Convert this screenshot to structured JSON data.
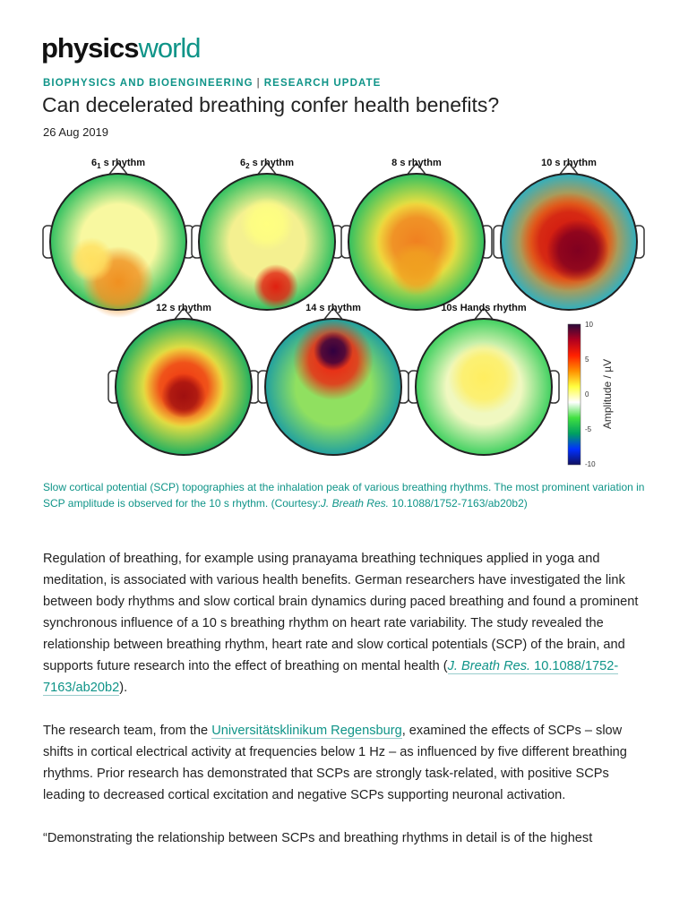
{
  "logo": {
    "part1": "physics",
    "part2": "world"
  },
  "category": {
    "primary": "BIOPHYSICS AND BIOENGINEERING",
    "separator": "|",
    "secondary": "RESEARCH UPDATE"
  },
  "title": "Can decelerated breathing confer health benefits?",
  "date": "26 Aug 2019",
  "figure": {
    "maps": [
      {
        "label": "6",
        "sub": "1",
        "suffix": " s rhythm"
      },
      {
        "label": "6",
        "sub": "2",
        "suffix": " s rhythm"
      },
      {
        "label": "8 s rhythm",
        "sub": "",
        "suffix": ""
      },
      {
        "label": "10 s rhythm",
        "sub": "",
        "suffix": ""
      },
      {
        "label": "12 s rhythm",
        "sub": "",
        "suffix": ""
      },
      {
        "label": "14 s rhythm",
        "sub": "",
        "suffix": ""
      },
      {
        "label": "10s Hands rhythm",
        "sub": "",
        "suffix": ""
      }
    ],
    "colorbar": {
      "label": "Amplitude / µV",
      "ticks": [
        "10",
        "5",
        "0",
        "-5",
        "-10"
      ],
      "colors": [
        "#2a0a3a",
        "#b00020",
        "#ff2000",
        "#ff9000",
        "#ffff40",
        "#ffffff",
        "#40e040",
        "#00a060",
        "#0030ff",
        "#101060"
      ]
    }
  },
  "caption": {
    "text": "Slow cortical potential (SCP) topographies at the inhalation peak of various breathing rhythms. The most prominent variation in SCP amplitude is observed for the 10 s rhythm. (Courtesy:",
    "journal": "J. Breath Res.",
    "doi": " 10.1088/1752-7163/ab20b2)"
  },
  "paragraphs": [
    {
      "text": "Regulation of breathing, for example using pranayama breathing techniques applied in yoga and meditation, is associated with various health benefits. German researchers have investigated the link between body rhythms and slow cortical brain dynamics during paced breathing and found a prominent synchronous influence of a 10 s breathing rhythm on heart rate variability. The study revealed the relationship between breathing rhythm, heart rate and slow cortical potentials (SCP) of the brain, and supports future research into the effect of breathing on mental health (",
      "link": "J. Breath Res.",
      "link2": " 10.1088/1752-7163/ab20b2",
      "after": ")."
    },
    {
      "before": "The research team, from the ",
      "link": "Universitätsklinikum Regensburg",
      "text": ", examined the effects of SCPs – slow shifts in cortical electrical activity at frequencies below 1 Hz – as influenced by five different breathing rhythms. Prior research has demonstrated that SCPs are strongly task-related, with positive SCPs leading to decreased cortical excitation and negative SCPs supporting neuronal activation."
    },
    {
      "text": "“Demonstrating the relationship between SCPs and breathing rhythms in detail is of the highest"
    }
  ]
}
